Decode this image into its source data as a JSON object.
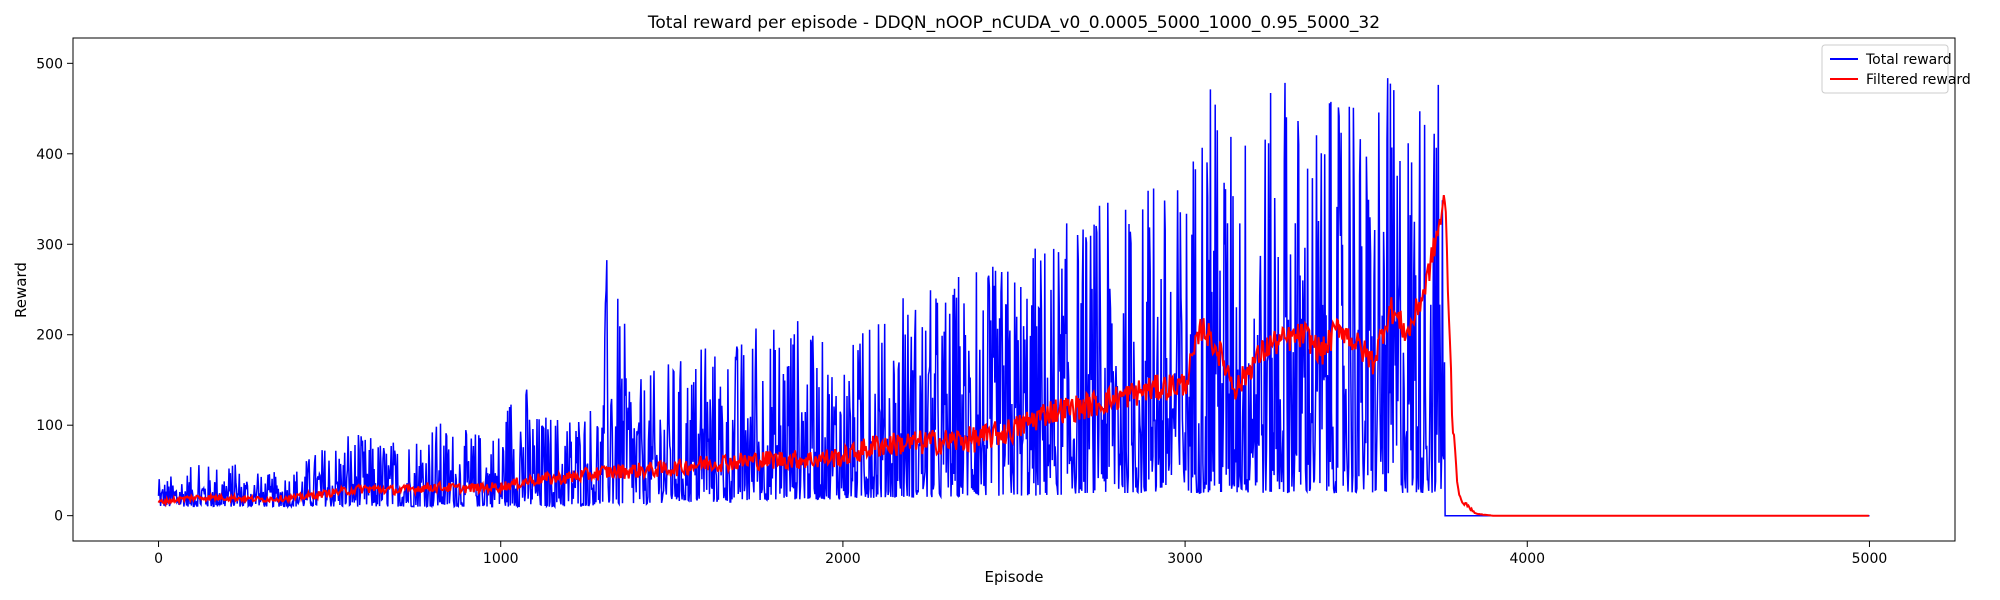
{
  "chart_data": {
    "type": "line",
    "title": "Total reward per episode - DDQN_nOOP_nCUDA_v0_0.0005_5000_1000_0.95_5000_32",
    "xlabel": "Episode",
    "ylabel": "Reward",
    "xlim": [
      -250,
      5250
    ],
    "ylim": [
      -28,
      528
    ],
    "xticks": [
      0,
      1000,
      2000,
      3000,
      4000,
      5000
    ],
    "yticks": [
      0,
      100,
      200,
      300,
      400,
      500
    ],
    "grid": false,
    "legend_position": "top-right",
    "series": [
      {
        "name": "Total reward",
        "color": "#0000ff",
        "x": [
          0,
          100,
          200,
          300,
          400,
          500,
          600,
          700,
          800,
          900,
          1000,
          1050,
          1100,
          1200,
          1300,
          1310,
          1400,
          1500,
          1600,
          1700,
          1800,
          1850,
          1900,
          2000,
          2100,
          2200,
          2300,
          2400,
          2500,
          2600,
          2700,
          2800,
          2900,
          3000,
          3050,
          3100,
          3200,
          3300,
          3400,
          3500,
          3550,
          3600,
          3650,
          3700,
          3740,
          3755,
          3760,
          3770,
          3800,
          5000
        ],
        "y_high": [
          40,
          55,
          60,
          45,
          55,
          85,
          90,
          85,
          110,
          95,
          100,
          185,
          115,
          120,
          140,
          298,
          150,
          175,
          185,
          200,
          215,
          242,
          200,
          190,
          210,
          250,
          260,
          270,
          290,
          320,
          335,
          350,
          360,
          380,
          500,
          440,
          460,
          480,
          460,
          450,
          420,
          500,
          480,
          500,
          500,
          500,
          0,
          0,
          0,
          0
        ],
        "y_low": [
          10,
          10,
          10,
          10,
          10,
          10,
          10,
          10,
          10,
          10,
          10,
          10,
          10,
          10,
          12,
          12,
          12,
          15,
          15,
          15,
          18,
          18,
          18,
          18,
          20,
          20,
          20,
          22,
          22,
          22,
          25,
          25,
          25,
          25,
          25,
          25,
          25,
          25,
          25,
          25,
          25,
          25,
          25,
          25,
          25,
          25,
          0,
          0,
          0,
          0
        ]
      },
      {
        "name": "Filtered reward",
        "color": "#ff0000",
        "x": [
          0,
          100,
          200,
          300,
          400,
          500,
          600,
          700,
          800,
          900,
          1000,
          1100,
          1200,
          1300,
          1400,
          1500,
          1600,
          1700,
          1800,
          1900,
          2000,
          2100,
          2200,
          2300,
          2400,
          2500,
          2600,
          2700,
          2800,
          2900,
          3000,
          3050,
          3100,
          3150,
          3200,
          3250,
          3300,
          3350,
          3400,
          3450,
          3500,
          3550,
          3600,
          3650,
          3700,
          3730,
          3760,
          3780,
          3800,
          3850,
          3900,
          5000
        ],
        "y": [
          15,
          20,
          20,
          18,
          20,
          25,
          30,
          28,
          32,
          30,
          32,
          40,
          42,
          48,
          50,
          52,
          58,
          60,
          62,
          62,
          65,
          78,
          80,
          82,
          85,
          95,
          115,
          120,
          130,
          140,
          145,
          210,
          180,
          140,
          170,
          190,
          195,
          200,
          180,
          210,
          190,
          170,
          230,
          200,
          250,
          300,
          350,
          120,
          20,
          2,
          0,
          0
        ]
      }
    ]
  }
}
